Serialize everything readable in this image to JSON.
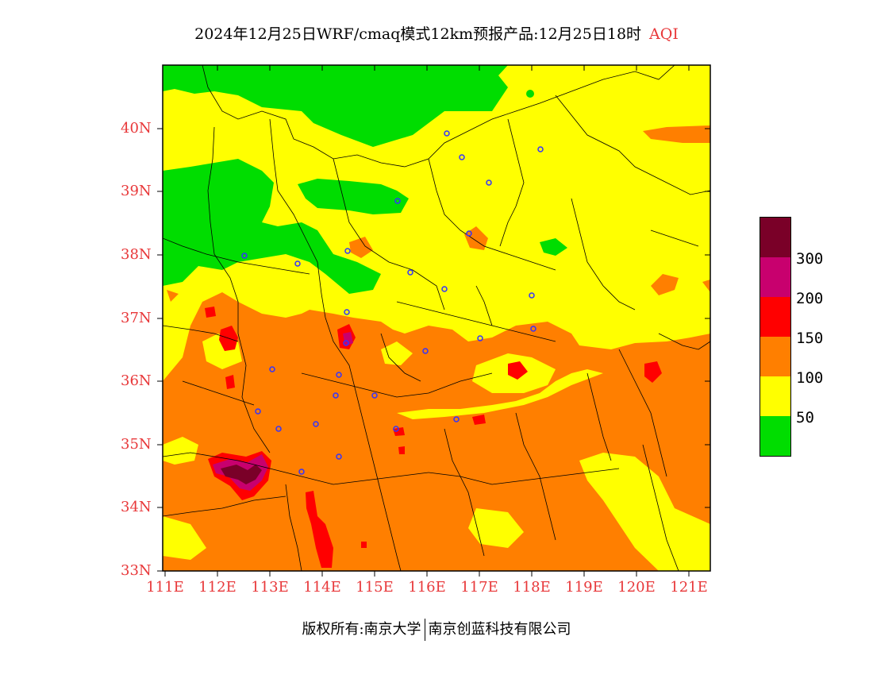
{
  "title": {
    "main": "2024年12月25日WRF/cmaq模式12km预报产品:12月25日18时",
    "tag": "AQI"
  },
  "colors": {
    "good": "#00dd00",
    "moderate": "#ffff00",
    "light": "#ff7f00",
    "medium": "#ff0000",
    "heavy": "#c8006e",
    "severe": "#7a0028",
    "axis_label": "#e8383a",
    "station": "#3333ff"
  },
  "axes": {
    "lat_ticks": [
      "40N",
      "39N",
      "38N",
      "37N",
      "36N",
      "35N",
      "34N",
      "33N"
    ],
    "lon_ticks": [
      "111E",
      "112E",
      "113E",
      "114E",
      "115E",
      "116E",
      "117E",
      "118E",
      "119E",
      "120E",
      "121E"
    ]
  },
  "legend": {
    "labels": [
      "300",
      "200",
      "150",
      "100",
      "50"
    ]
  },
  "footer": {
    "left": "版权所有:南京大学",
    "right": "南京创蓝科技有限公司"
  }
}
